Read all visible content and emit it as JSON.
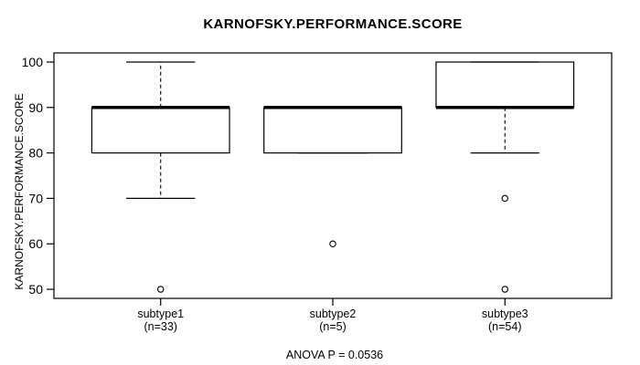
{
  "chart_data": {
    "type": "boxplot",
    "title": "KARNOFSKY.PERFORMANCE.SCORE",
    "ylabel": "KARNOFSKY.PERFORMANCE.SCORE",
    "xlabel": "",
    "annotation": "ANOVA P = 0.0536",
    "ylim": [
      50,
      100
    ],
    "yticks": [
      50,
      60,
      70,
      80,
      90,
      100
    ],
    "grid": false,
    "frame": true,
    "legend": null,
    "groups": [
      {
        "label": "subtype1",
        "sublabel": "(n=33)",
        "n": 33,
        "whisker_low": 70,
        "q1": 80,
        "median": 90,
        "q3": 90,
        "whisker_high": 100,
        "outliers": [
          50
        ]
      },
      {
        "label": "subtype2",
        "sublabel": "(n=5)",
        "n": 5,
        "whisker_low": 80,
        "q1": 80,
        "median": 90,
        "q3": 90,
        "whisker_high": 90,
        "outliers": [
          60
        ]
      },
      {
        "label": "subtype3",
        "sublabel": "(n=54)",
        "n": 54,
        "whisker_low": 80,
        "q1": 90,
        "median": 90,
        "q3": 100,
        "whisker_high": 100,
        "outliers": [
          70,
          50
        ]
      }
    ],
    "colors": {
      "line": "#000000",
      "box_fill": "#ffffff",
      "background": "#ffffff"
    }
  }
}
